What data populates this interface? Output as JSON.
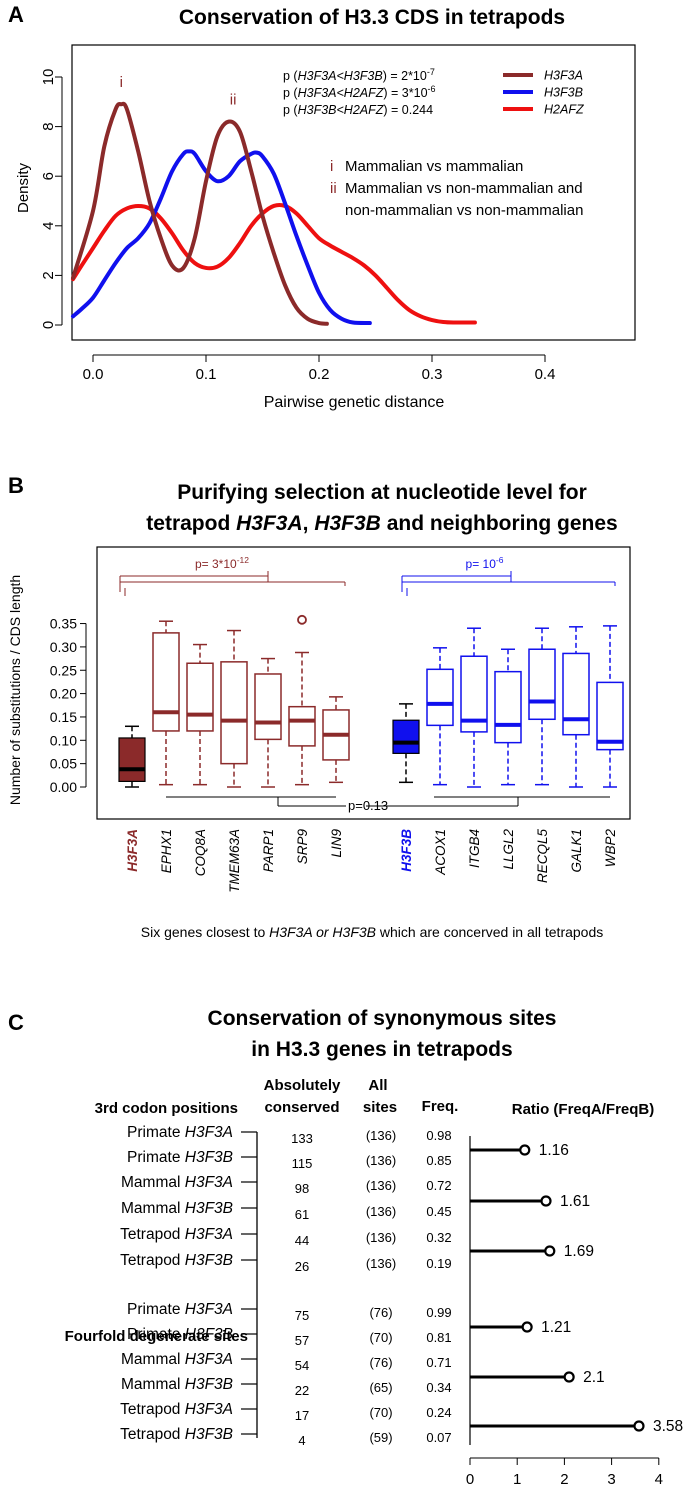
{
  "colors": {
    "h3f3a": "#8b2a2a",
    "h3f3b": "#1010ee",
    "h2afz": "#ee1010",
    "line": "#000000"
  },
  "chart_data": [
    {
      "panel_letter": "A",
      "type": "line",
      "title": "Conservation of H3.3 CDS in tetrapods",
      "xlabel": "Pairwise genetic distance",
      "ylabel": "Density",
      "xlim": [
        -0.02,
        0.45
      ],
      "ylim": [
        0,
        10.5
      ],
      "x_ticks": [
        0.0,
        0.1,
        0.2,
        0.3,
        0.4
      ],
      "x_tick_labels": [
        "0.0",
        "0.1",
        "0.2",
        "0.3",
        "0.4"
      ],
      "y_ticks": [
        0,
        2,
        4,
        6,
        8,
        10
      ],
      "y_tick_labels": [
        "0",
        "2",
        "4",
        "6",
        "8",
        "10"
      ],
      "legend_position": "top-right",
      "series": [
        {
          "name": "H3F3A",
          "color_key": "h3f3a",
          "x": [
            -0.02,
            0.0,
            0.01,
            0.02,
            0.025,
            0.03,
            0.04,
            0.05,
            0.06,
            0.07,
            0.08,
            0.09,
            0.1,
            0.11,
            0.12,
            0.13,
            0.14,
            0.15,
            0.16,
            0.17,
            0.18,
            0.19,
            0.2,
            0.207
          ],
          "y": [
            1.9,
            4.6,
            7.2,
            8.7,
            8.9,
            8.7,
            7.0,
            5.0,
            3.5,
            2.4,
            2.3,
            3.5,
            5.8,
            7.6,
            8.2,
            7.8,
            6.2,
            4.4,
            2.9,
            1.6,
            0.7,
            0.25,
            0.08,
            0.05
          ]
        },
        {
          "name": "H3F3B",
          "color_key": "h3f3b",
          "x": [
            -0.02,
            -0.01,
            0.0,
            0.01,
            0.02,
            0.03,
            0.04,
            0.05,
            0.06,
            0.07,
            0.08,
            0.085,
            0.09,
            0.1,
            0.11,
            0.12,
            0.13,
            0.14,
            0.145,
            0.15,
            0.16,
            0.17,
            0.18,
            0.19,
            0.2,
            0.21,
            0.22,
            0.23,
            0.245
          ],
          "y": [
            0.35,
            0.65,
            1.1,
            1.8,
            2.5,
            3.1,
            3.5,
            4.1,
            5.1,
            6.2,
            6.9,
            7.0,
            6.9,
            6.2,
            5.8,
            6.0,
            6.6,
            6.9,
            6.95,
            6.8,
            6.1,
            4.9,
            3.6,
            2.4,
            1.3,
            0.6,
            0.25,
            0.1,
            0.08
          ]
        },
        {
          "name": "H2AFZ",
          "color_key": "h2afz",
          "x": [
            -0.02,
            -0.01,
            0.0,
            0.01,
            0.02,
            0.03,
            0.04,
            0.05,
            0.06,
            0.07,
            0.08,
            0.09,
            0.1,
            0.11,
            0.12,
            0.13,
            0.14,
            0.15,
            0.16,
            0.17,
            0.18,
            0.19,
            0.2,
            0.21,
            0.22,
            0.23,
            0.24,
            0.25,
            0.26,
            0.27,
            0.28,
            0.29,
            0.3,
            0.31,
            0.32,
            0.338
          ],
          "y": [
            1.85,
            2.4,
            3.1,
            3.8,
            4.4,
            4.7,
            4.8,
            4.7,
            4.3,
            3.7,
            3.0,
            2.5,
            2.3,
            2.35,
            2.7,
            3.3,
            4.0,
            4.5,
            4.8,
            4.8,
            4.5,
            4.0,
            3.5,
            3.2,
            2.95,
            2.7,
            2.4,
            2.0,
            1.5,
            1.0,
            0.6,
            0.35,
            0.2,
            0.12,
            0.1,
            0.1
          ]
        }
      ],
      "peak_labels": [
        {
          "label": "i",
          "x": 0.025,
          "y": 9.6
        },
        {
          "label": "ii",
          "x": 0.124,
          "y": 8.9
        }
      ],
      "pvalues": [
        {
          "prefix": "p (",
          "text": "H3F3A<H3F3B",
          "suffix": ") = 2*10",
          "sup": "-7"
        },
        {
          "prefix": "p (",
          "text": "H3F3A<H2AFZ",
          "suffix": ") = 3*10",
          "sup": "-6"
        },
        {
          "prefix": "p (",
          "text": "H3F3B<H2AFZ",
          "suffix": ") = 0.244",
          "sup": ""
        }
      ],
      "annotations": [
        {
          "num": "i",
          "text": "Mammalian vs mammalian"
        },
        {
          "num": "ii",
          "text": "Mammalian vs non-mammalian and"
        },
        {
          "num": "",
          "text": "non-mammalian vs non-mammalian"
        }
      ]
    },
    {
      "panel_letter": "B",
      "type": "box",
      "title_line1": "Purifying selection at nucleotide level for",
      "title_line2_parts": [
        {
          "text": "tetrapod ",
          "italic": false
        },
        {
          "text": "H3F3A",
          "italic": true
        },
        {
          "text": ", ",
          "italic": false
        },
        {
          "text": "H3F3B",
          "italic": true
        },
        {
          "text": " and neighboring genes",
          "italic": false
        }
      ],
      "ylabel": "Number of substitutions / CDS length",
      "ylim": [
        -0.02,
        0.42
      ],
      "y_ticks": [
        0.0,
        0.05,
        0.1,
        0.15,
        0.2,
        0.25,
        0.3,
        0.35
      ],
      "y_tick_labels": [
        "0.00",
        "0.05",
        "0.10",
        "0.15",
        "0.20",
        "0.25",
        "0.30",
        "0.35"
      ],
      "groups": [
        {
          "name": "H3F3A",
          "color_key": "h3f3a",
          "pvalue": "p= 3*10",
          "pvalue_sup": "-12",
          "boxes": [
            {
              "name": "H3F3A",
              "filled": true,
              "min": 0.0,
              "q1": 0.012,
              "median": 0.038,
              "q3": 0.105,
              "max": 0.13,
              "outliers": []
            },
            {
              "name": "EPHX1",
              "min": 0.005,
              "q1": 0.12,
              "median": 0.16,
              "q3": 0.33,
              "max": 0.355,
              "outliers": []
            },
            {
              "name": "COQ8A",
              "min": 0.005,
              "q1": 0.12,
              "median": 0.155,
              "q3": 0.265,
              "max": 0.305,
              "outliers": []
            },
            {
              "name": "TMEM63A",
              "min": 0.0,
              "q1": 0.05,
              "median": 0.142,
              "q3": 0.268,
              "max": 0.335,
              "outliers": []
            },
            {
              "name": "PARP1",
              "min": 0.0,
              "q1": 0.102,
              "median": 0.138,
              "q3": 0.242,
              "max": 0.275,
              "outliers": []
            },
            {
              "name": "SRP9",
              "min": 0.005,
              "q1": 0.088,
              "median": 0.142,
              "q3": 0.172,
              "max": 0.288,
              "outliers": [
                0.358
              ]
            },
            {
              "name": "LIN9",
              "min": 0.01,
              "q1": 0.058,
              "median": 0.112,
              "q3": 0.165,
              "max": 0.193,
              "outliers": []
            }
          ]
        },
        {
          "name": "H3F3B",
          "color_key": "h3f3b",
          "pvalue": "p= 10",
          "pvalue_sup": "-6",
          "boxes": [
            {
              "name": "H3F3B",
              "filled": true,
              "min": 0.01,
              "q1": 0.072,
              "median": 0.095,
              "q3": 0.143,
              "max": 0.178,
              "outliers": []
            },
            {
              "name": "ACOX1",
              "min": 0.005,
              "q1": 0.132,
              "median": 0.178,
              "q3": 0.252,
              "max": 0.298,
              "outliers": []
            },
            {
              "name": "ITGB4",
              "min": 0.0,
              "q1": 0.118,
              "median": 0.142,
              "q3": 0.28,
              "max": 0.34,
              "outliers": []
            },
            {
              "name": "LLGL2",
              "min": 0.005,
              "q1": 0.095,
              "median": 0.133,
              "q3": 0.247,
              "max": 0.295,
              "outliers": []
            },
            {
              "name": "RECQL5",
              "min": 0.005,
              "q1": 0.145,
              "median": 0.183,
              "q3": 0.295,
              "max": 0.34,
              "outliers": []
            },
            {
              "name": "GALK1",
              "min": 0.0,
              "q1": 0.112,
              "median": 0.145,
              "q3": 0.286,
              "max": 0.343,
              "outliers": []
            },
            {
              "name": "WBP2",
              "min": 0.0,
              "q1": 0.08,
              "median": 0.097,
              "q3": 0.224,
              "max": 0.345,
              "outliers": []
            }
          ]
        }
      ],
      "bottom_pvalue": "p=0.13",
      "caption_parts": [
        {
          "text": "Six genes closest to ",
          "italic": false
        },
        {
          "text": "H3F3A or  H3F3B",
          "italic": true
        },
        {
          "text": "  which are concerved in all tetrapods",
          "italic": false
        }
      ]
    },
    {
      "panel_letter": "C",
      "type": "table",
      "title_line1": "Conservation of synonymous sites",
      "title_line2": "in H3.3 genes in tetrapods",
      "headers": {
        "section1": "3rd codon positions",
        "abs_line1": "Absolutely",
        "abs_line2": "conserved",
        "all_line1": "All",
        "all_line2": "sites",
        "freq": "Freq.",
        "ratio": "Ratio (FreqA/FreqB)"
      },
      "section2": "Fourfold degenerate sites",
      "rows": [
        {
          "taxon": "Primate",
          "gene": "H3F3A",
          "abs": "133",
          "all": "(136)",
          "freq": "0.98"
        },
        {
          "taxon": "Primate",
          "gene": "H3F3B",
          "abs": "115",
          "all": "(136)",
          "freq": "0.85"
        },
        {
          "taxon": "Mammal",
          "gene": "H3F3A",
          "abs": "98",
          "all": "(136)",
          "freq": "0.72"
        },
        {
          "taxon": "Mammal",
          "gene": "H3F3B",
          "abs": "61",
          "all": "(136)",
          "freq": "0.45"
        },
        {
          "taxon": "Tetrapod",
          "gene": "H3F3A",
          "abs": "44",
          "all": "(136)",
          "freq": "0.32"
        },
        {
          "taxon": "Tetrapod",
          "gene": "H3F3B",
          "abs": "26",
          "all": "(136)",
          "freq": "0.19"
        },
        {
          "taxon": "Primate",
          "gene": "H3F3A",
          "abs": "75",
          "all": "(76)",
          "freq": "0.99"
        },
        {
          "taxon": "Primate",
          "gene": "H3F3B",
          "abs": "57",
          "all": "(70)",
          "freq": "0.81"
        },
        {
          "taxon": "Mammal",
          "gene": "H3F3A",
          "abs": "54",
          "all": "(76)",
          "freq": "0.71"
        },
        {
          "taxon": "Mammal",
          "gene": "H3F3B",
          "abs": "22",
          "all": "(65)",
          "freq": "0.34"
        },
        {
          "taxon": "Tetrapod",
          "gene": "H3F3A",
          "abs": "17",
          "all": "(70)",
          "freq": "0.24"
        },
        {
          "taxon": "Tetrapod",
          "gene": "H3F3B",
          "abs": "4",
          "all": "(59)",
          "freq": "0.07"
        }
      ],
      "ratios": [
        {
          "value": 1.16,
          "label": "1.16"
        },
        {
          "value": 1.61,
          "label": "1.61"
        },
        {
          "value": 1.69,
          "label": "1.69"
        },
        {
          "value": 1.21,
          "label": "1.21"
        },
        {
          "value": 2.1,
          "label": "2.1"
        },
        {
          "value": 3.58,
          "label": "3.58"
        }
      ],
      "ratio_axis": {
        "xlim": [
          0,
          4
        ],
        "ticks": [
          0,
          1,
          2,
          3,
          4
        ],
        "tick_labels": [
          "0",
          "1",
          "2",
          "3",
          "4"
        ]
      }
    }
  ]
}
